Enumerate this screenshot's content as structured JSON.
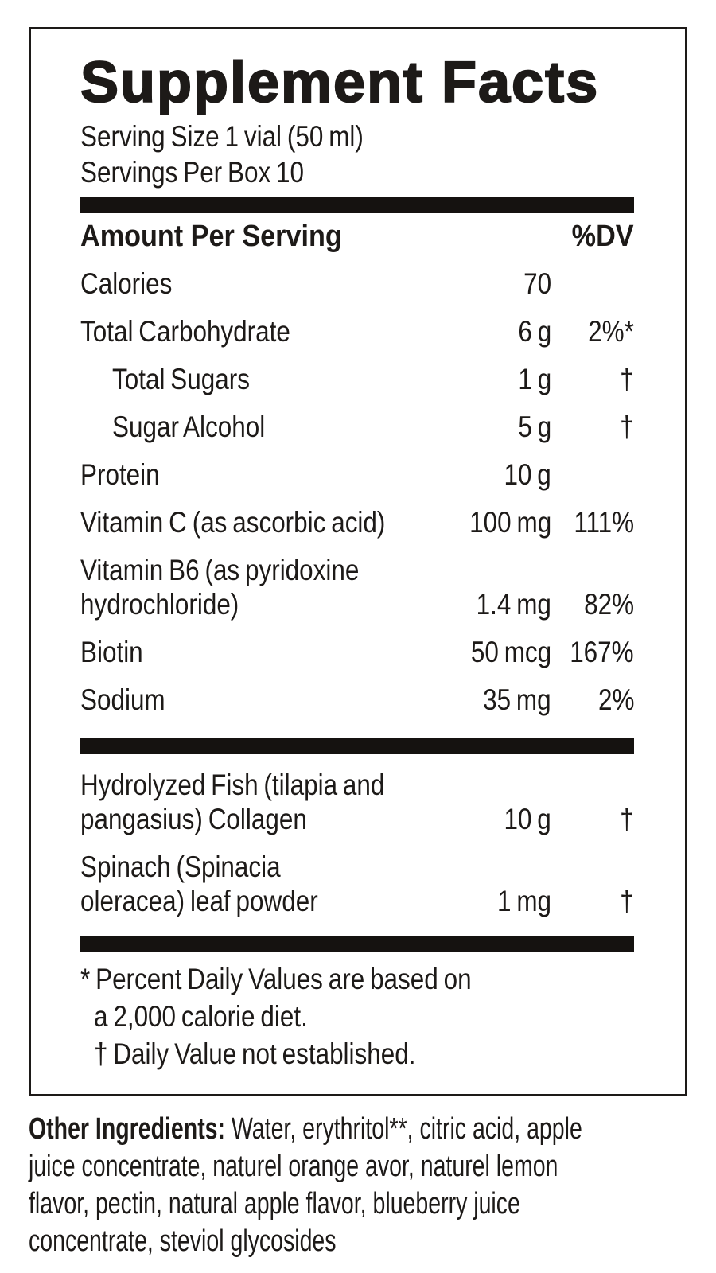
{
  "label": {
    "title": "Supplement Facts",
    "serving_size": "Serving Size 1 vial (50 ml)",
    "servings_per_box": "Servings Per Box 10",
    "header": {
      "amount_per_serving": "Amount Per Serving",
      "dv": "%DV"
    },
    "rows": [
      {
        "name": "Calories",
        "amount": "70",
        "dv": ""
      },
      {
        "name": "Total Carbohydrate",
        "amount": "6 g",
        "dv": "2%*"
      },
      {
        "name": "Total Sugars",
        "amount": "1 g",
        "dv": "†",
        "indent": true
      },
      {
        "name": "Sugar Alcohol",
        "amount": "5 g",
        "dv": "†",
        "indent": true
      },
      {
        "name": "Protein",
        "amount": "10 g",
        "dv": ""
      },
      {
        "name": "Vitamin C (as ascorbic acid)",
        "amount": "100 mg",
        "dv": "111%"
      },
      {
        "name": "Vitamin B6 (as pyridoxine\nhydrochloride)",
        "amount": "1.4 mg",
        "dv": "82%"
      },
      {
        "name": "Biotin",
        "amount": "50 mcg",
        "dv": "167%"
      },
      {
        "name": "Sodium",
        "amount": "35 mg",
        "dv": "2%"
      }
    ],
    "section2_rows": [
      {
        "name": "Hydrolyzed Fish (tilapia and\npangasius) Collagen",
        "amount": "10 g",
        "dv": "†"
      },
      {
        "name": "Spinach (Spinacia\noleracea) leaf powder",
        "amount": "1 mg",
        "dv": "†"
      }
    ],
    "footnotes": [
      "* Percent Daily Values are based on\na 2,000 calorie diet.",
      "† Daily Value not established."
    ]
  },
  "other_ingredients": {
    "label": "Other Ingredients:",
    "text": "Water, erythritol**, citric acid, apple\njuice concentrate, naturel orange avor, naturel lemon\nflavor, pectin, natural apple flavor, blueberry juice\nconcentrate, steviol glycosides"
  },
  "colors": {
    "text": "#1d1a18",
    "bar": "#151210",
    "background": "#ffffff"
  }
}
